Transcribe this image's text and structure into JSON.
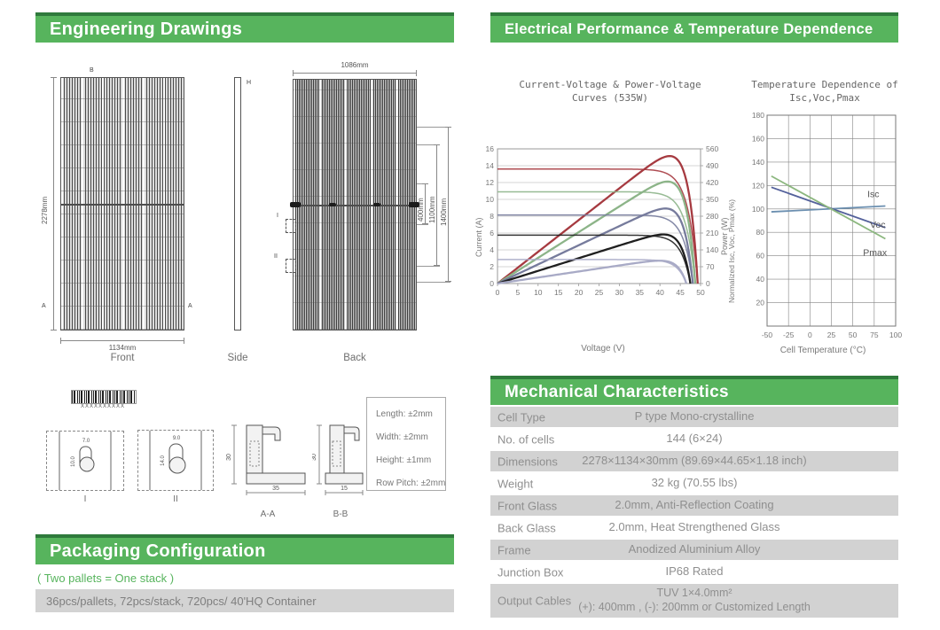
{
  "sections": {
    "engineering": {
      "title": "Engineering Drawings"
    },
    "electrical": {
      "title": "Electrical Performance & Temperature Dependence"
    },
    "mechanical": {
      "title": "Mechanical Characteristics"
    },
    "packaging": {
      "title": "Packaging Configuration",
      "note": "( Two pallets = One stack )",
      "detail": "36pcs/pallets, 72pcs/stack, 720pcs/ 40'HQ Container"
    }
  },
  "colors": {
    "accent_green": "#57b45d",
    "accent_green_dark": "#2f7a3c",
    "table_stripe": "#d2d2d2"
  },
  "drawings": {
    "front": {
      "label": "Front",
      "height_dim": "2278mm",
      "width_dim": "1134mm",
      "marker_top": "B",
      "marker_left": "A",
      "marker_right": "A"
    },
    "side": {
      "label": "Side",
      "marker": "H"
    },
    "back": {
      "label": "Back",
      "width_dim": "1086mm",
      "dim_400": "400mm",
      "dim_1100": "1100mm",
      "dim_1400": "1400mm",
      "marker_1": "I",
      "marker_2": "II"
    },
    "barcode_text": "XXXXXXXXXX",
    "detail_1": {
      "label": "I",
      "dim_w": "7.0",
      "dim_h": "10.0"
    },
    "detail_2": {
      "label": "II",
      "dim_w": "9.0",
      "dim_h": "14.0"
    },
    "section_aa": {
      "label": "A-A",
      "dim_h": "30",
      "dim_w": "35"
    },
    "section_bb": {
      "label": "B-B",
      "dim_h": "30",
      "dim_w": "15"
    },
    "tolerances": [
      "Length: ±2mm",
      "Width: ±2mm",
      "Height: ±1mm",
      "Row Pitch: ±2mm"
    ]
  },
  "chart_data": [
    {
      "type": "line",
      "title": "Current-Voltage & Power-Voltage Curves (535W)",
      "title_lines": [
        "Current-Voltage & Power-Voltage",
        "Curves (535W)"
      ],
      "xlabel": "Voltage (V)",
      "ylabel_left": "Current (A)",
      "ylabel_right": "Power (W)",
      "xlim": [
        0,
        50
      ],
      "xticks": [
        0,
        5,
        10,
        15,
        20,
        25,
        30,
        35,
        40,
        45,
        50
      ],
      "ylim_left": [
        0,
        16
      ],
      "yticks_left": [
        0,
        2,
        4,
        6,
        8,
        10,
        12,
        14,
        16
      ],
      "ylim_right": [
        0,
        560
      ],
      "yticks_right": [
        0,
        70,
        140,
        210,
        280,
        350,
        420,
        490,
        560
      ],
      "grid": "horizontal",
      "legend": "none",
      "series": [
        {
          "color": "#a63a40",
          "isc": 13.6,
          "voc": 49.3,
          "pmax": 530
        },
        {
          "color": "#8cb488",
          "isc": 10.9,
          "voc": 48.7,
          "pmax": 424
        },
        {
          "color": "#767b9c",
          "isc": 8.15,
          "voc": 48.1,
          "pmax": 312
        },
        {
          "color": "#1f1f1f",
          "isc": 5.75,
          "voc": 47.5,
          "pmax": 204
        },
        {
          "color": "#a8aac6",
          "isc": 2.85,
          "voc": 46.5,
          "pmax": 95
        }
      ]
    },
    {
      "type": "line",
      "title": "Temperature Dependence of Isc,Voc,Pmax",
      "title_lines": [
        "Temperature Dependence of",
        "Isc,Voc,Pmax"
      ],
      "xlabel": "Cell Temperature (°C)",
      "ylabel": "Normalized Isc, Voc, Pmax (%)",
      "xlim": [
        -50,
        100
      ],
      "xticks": [
        -50,
        -25,
        0,
        25,
        50,
        75,
        100
      ],
      "ylim": [
        0,
        180
      ],
      "yticks": [
        20,
        40,
        60,
        80,
        100,
        120,
        140,
        160,
        180
      ],
      "grid": "full",
      "series": [
        {
          "name": "Isc",
          "color": "#6b8fb0",
          "points": [
            [
              -45,
              97.5
            ],
            [
              88,
              102.5
            ]
          ],
          "label_pos": [
            67,
            110
          ]
        },
        {
          "name": "Voc",
          "color": "#54619b",
          "points": [
            [
              -45,
              118.5
            ],
            [
              88,
              84
            ]
          ],
          "label_pos": [
            70,
            84
          ]
        },
        {
          "name": "Pmax",
          "color": "#8cb77f",
          "points": [
            [
              -45,
              128
            ],
            [
              88,
              74.5
            ]
          ],
          "label_pos": [
            62,
            60
          ]
        }
      ]
    }
  ],
  "mech_table": {
    "rows": [
      {
        "label": "Cell Type",
        "value": "P type Mono-crystalline"
      },
      {
        "label": "No. of cells",
        "value": "144 (6×24)"
      },
      {
        "label": "Dimensions",
        "value": "2278×1134×30mm (89.69×44.65×1.18 inch)"
      },
      {
        "label": "Weight",
        "value": "32 kg (70.55 lbs)"
      },
      {
        "label": "Front Glass",
        "value": "2.0mm, Anti-Reflection Coating"
      },
      {
        "label": "Back Glass",
        "value": "2.0mm, Heat Strengthened Glass"
      },
      {
        "label": "Frame",
        "value": "Anodized Aluminium Alloy"
      },
      {
        "label": "Junction Box",
        "value": "IP68 Rated"
      },
      {
        "label": "Output Cables",
        "value": "TUV  1×4.0mm²",
        "value2": "(+): 400mm , (-): 200mm or Customized Length"
      }
    ]
  }
}
